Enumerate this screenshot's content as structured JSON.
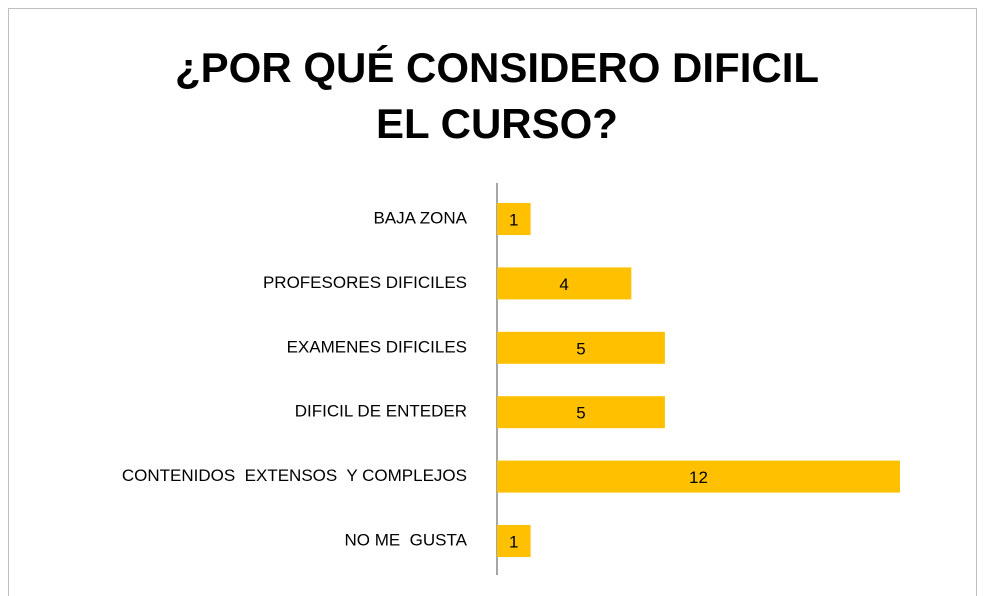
{
  "chart_data": {
    "type": "bar",
    "orientation": "horizontal",
    "title": "¿POR QUÉ CONSIDERO DIFICIL EL CURSO?",
    "categories": [
      "BAJA ZONA",
      "PROFESORES DIFICILES",
      "EXAMENES DIFICILES",
      "DIFICIL DE ENTEDER",
      "CONTENIDOS  EXTENSOS  Y COMPLEJOS",
      "NO ME  GUSTA"
    ],
    "values": [
      1,
      4,
      5,
      5,
      12,
      1
    ],
    "color": "#ffc000"
  }
}
